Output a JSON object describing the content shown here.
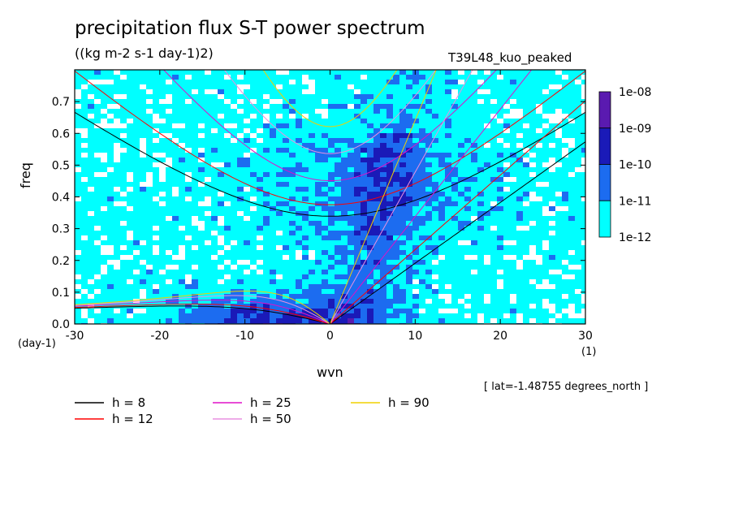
{
  "chart_data": {
    "type": "heatmap",
    "title": "precipitation flux S-T power spectrum",
    "subtitle": "((kg m-2 s-1 day-1)2)",
    "run_label": "T39L48_kuo_peaked",
    "xlabel": "wvn",
    "x_unit": "(1)",
    "ylabel": "freq",
    "y_unit": "(day-1)",
    "xlim": [
      -30,
      30
    ],
    "ylim": [
      0,
      0.8
    ],
    "x_ticks": [
      -30,
      -20,
      -10,
      0,
      10,
      20,
      30
    ],
    "y_ticks": [
      0.0,
      0.1,
      0.2,
      0.3,
      0.4,
      0.5,
      0.6,
      0.7
    ],
    "colorbar": {
      "labels": [
        "1e-08",
        "1e-09",
        "1e-10",
        "1e-11",
        "1e-12"
      ],
      "colors": [
        "#5a1ab0",
        "#1a1ab8",
        "#1c6cf0",
        "#00ffff",
        "#ffffff"
      ]
    },
    "dispersion_curves": [
      {
        "name": "h =  8",
        "h": 8,
        "color": "#000000"
      },
      {
        "name": "h = 12",
        "h": 12,
        "color": "#ff0000"
      },
      {
        "name": "h = 25",
        "h": 25,
        "color": "#e010c8"
      },
      {
        "name": "h = 50",
        "h": 50,
        "color": "#e890e0"
      },
      {
        "name": "h = 90",
        "h": 90,
        "color": "#f0d000"
      }
    ],
    "annotation": "[ lat=-1.48755 degrees_north ]"
  }
}
